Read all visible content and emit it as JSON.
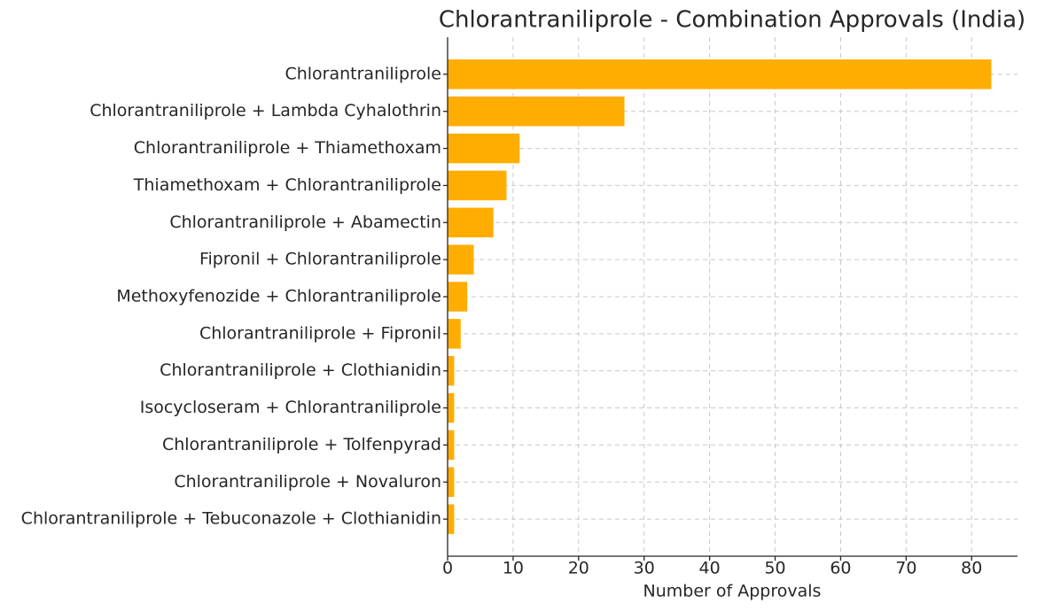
{
  "chart_data": {
    "type": "bar",
    "orientation": "horizontal",
    "title": "Chlorantraniliprole - Combination Approvals (India)",
    "x_label": "Number of Approvals",
    "categories": [
      "Chlorantraniliprole",
      "Chlorantraniliprole + Lambda Cyhalothrin",
      "Chlorantraniliprole + Thiamethoxam",
      "Thiamethoxam + Chlorantraniliprole",
      "Chlorantraniliprole + Abamectin",
      "Fipronil + Chlorantraniliprole",
      "Methoxyfenozide + Chlorantraniliprole",
      "Chlorantraniliprole + Fipronil",
      "Chlorantraniliprole + Clothianidin",
      "Isocycloseram + Chlorantraniliprole",
      "Chlorantraniliprole + Tolfenpyrad",
      "Chlorantraniliprole + Novaluron",
      "Chlorantraniliprole + Tebuconazole + Clothianidin"
    ],
    "values": [
      83,
      27,
      11,
      9,
      7,
      4,
      3,
      2,
      1,
      1,
      1,
      1,
      1
    ],
    "color": "#ffad00",
    "xlim": [
      0,
      87
    ],
    "xticks": [
      0,
      10,
      20,
      30,
      40,
      50,
      60,
      70,
      80
    ],
    "grid": true
  }
}
